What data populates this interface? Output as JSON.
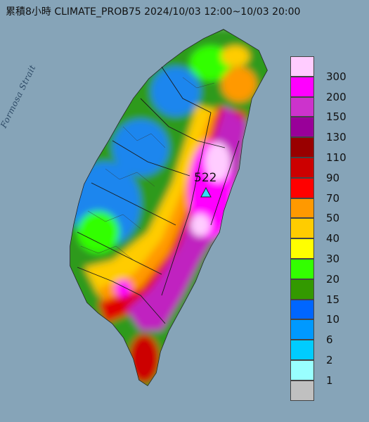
{
  "header": {
    "title": "累積8小時 CLIMATE_PROB75 2024/10/03 12:00~10/03 20:00"
  },
  "map": {
    "sea_label": "Formosa Strait",
    "max_value_label": "522",
    "max_marker": "triangle-icon",
    "sea_color": "#7f9fb3",
    "land_base_color": "#c8c8c8"
  },
  "legend": {
    "items": [
      {
        "label": "300",
        "color": "#ffccff"
      },
      {
        "label": "200",
        "color": "#ff00ff"
      },
      {
        "label": "150",
        "color": "#cc33cc"
      },
      {
        "label": "130",
        "color": "#990099"
      },
      {
        "label": "110",
        "color": "#990000"
      },
      {
        "label": "90",
        "color": "#cc0000"
      },
      {
        "label": "70",
        "color": "#ff0000"
      },
      {
        "label": "50",
        "color": "#ff9900"
      },
      {
        "label": "40",
        "color": "#ffcc00"
      },
      {
        "label": "30",
        "color": "#ffff00"
      },
      {
        "label": "20",
        "color": "#33ff00"
      },
      {
        "label": "15",
        "color": "#339900"
      },
      {
        "label": "10",
        "color": "#0066ff"
      },
      {
        "label": "6",
        "color": "#0099ff"
      },
      {
        "label": "2",
        "color": "#00ccff"
      },
      {
        "label": "1",
        "color": "#99ffff"
      },
      {
        "label": "",
        "color": "#c0c0c0"
      }
    ]
  }
}
